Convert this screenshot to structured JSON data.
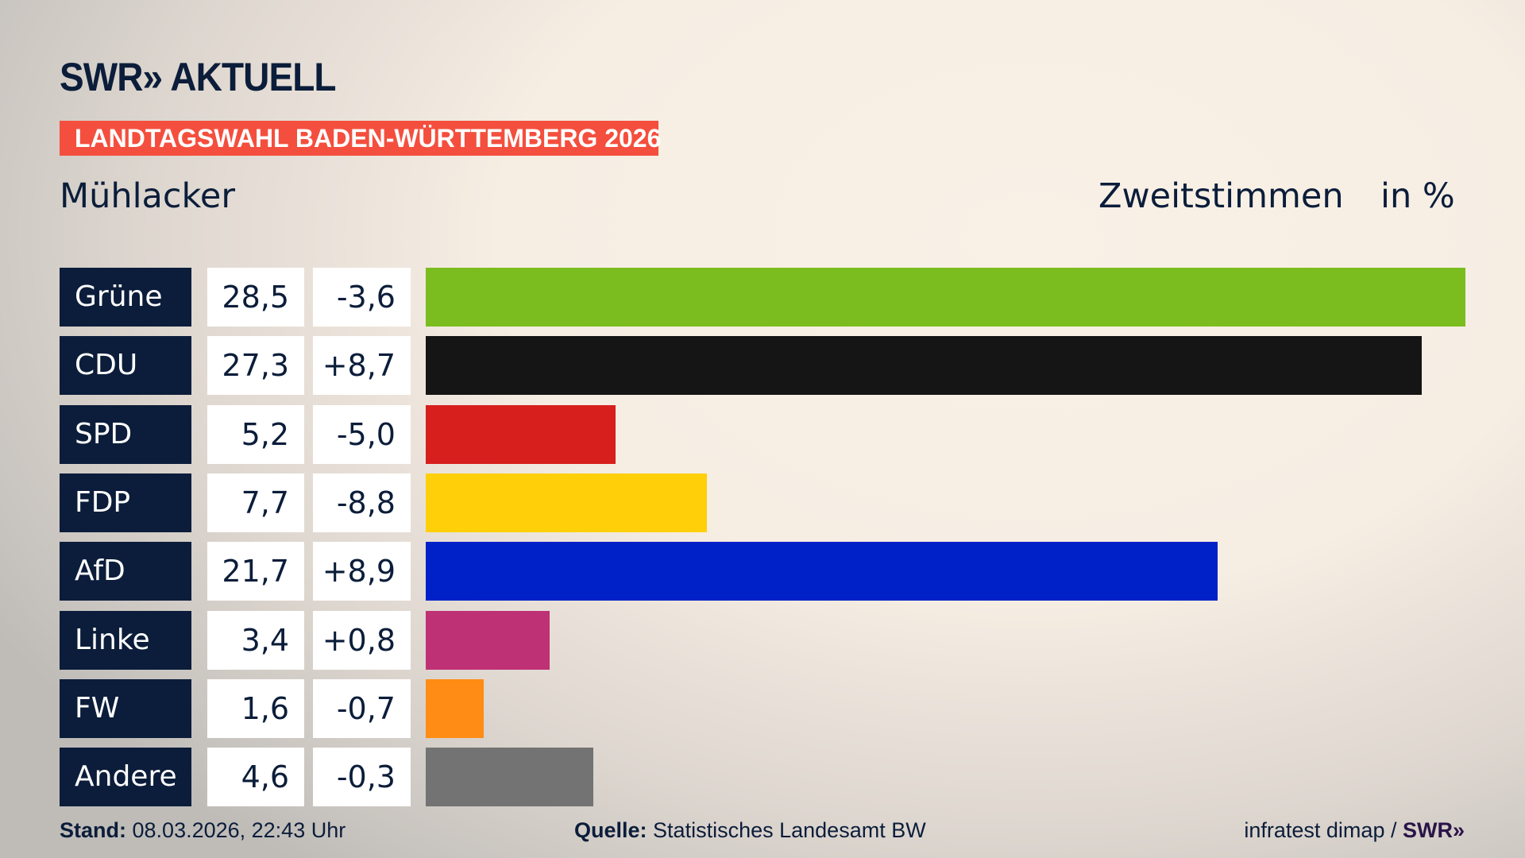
{
  "header": {
    "logo": "SWR» AKTUELL",
    "banner": "LANDTAGSWAHL BADEN-WÜRTTEMBERG 2026",
    "place": "Mühlacker",
    "vote_type": "Zweitstimmen",
    "unit": "in %"
  },
  "chart_data": {
    "type": "bar",
    "orientation": "horizontal",
    "xlim": [
      0,
      28.5
    ],
    "categories": [
      "Grüne",
      "CDU",
      "SPD",
      "FDP",
      "AfD",
      "Linke",
      "FW",
      "Andere"
    ],
    "values": [
      28.5,
      27.3,
      5.2,
      7.7,
      21.7,
      3.4,
      1.6,
      4.6
    ],
    "value_labels": [
      "28,5",
      "27,3",
      "5,2",
      "7,7",
      "21,7",
      "3,4",
      "1,6",
      "4,6"
    ],
    "change_labels": [
      "-3,6",
      "+8,7",
      "-5,0",
      "-8,8",
      "+8,9",
      "+0,8",
      "-0,7",
      "-0,3"
    ],
    "changes": [
      -3.6,
      8.7,
      -5.0,
      -8.8,
      8.9,
      0.8,
      -0.7,
      -0.3
    ],
    "colors": [
      "#7bbd1e",
      "#151515",
      "#d71f1d",
      "#ffd00a",
      "#0021c8",
      "#bf3175",
      "#ff8c14",
      "#737373"
    ]
  },
  "footer": {
    "stand_label": "Stand:",
    "stand": "08.03.2026, 22:43 Uhr",
    "source_label": "Quelle:",
    "source": "Statistisches Landesamt BW",
    "credit": "infratest dimap /",
    "credit_logo": "SWR»"
  }
}
